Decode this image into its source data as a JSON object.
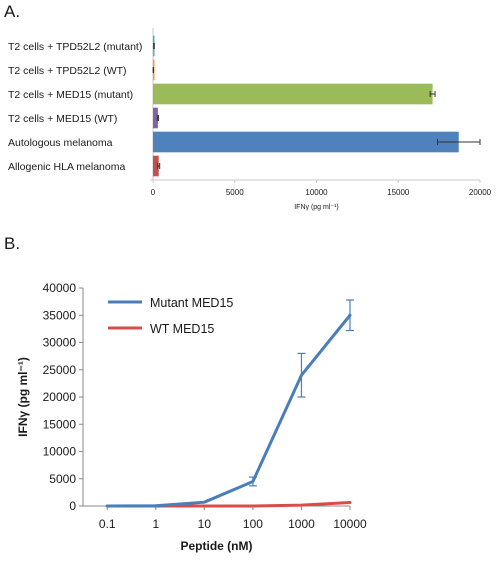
{
  "panel_a": {
    "label": "A.",
    "chart_data": {
      "type": "bar",
      "orientation": "horizontal",
      "categories": [
        "T2 cells + TPD52L2 (mutant)",
        "T2 cells + TPD52L2 (WT)",
        "T2 cells + MED15 (mutant)",
        "T2 cells + MED15 (WT)",
        "Autologous melanoma",
        "Allogenic HLA melanoma"
      ],
      "values": [
        60,
        20,
        17100,
        300,
        18700,
        350
      ],
      "errors": [
        20,
        10,
        150,
        40,
        1300,
        60
      ],
      "colors": [
        "#4bacc6",
        "#f79646",
        "#9bbb59",
        "#8064a2",
        "#4f81bd",
        "#c0504d"
      ],
      "xlabel": "IFNγ (pg ml⁻¹)",
      "xlim": [
        0,
        20000
      ],
      "xticks": [
        "0",
        "5000",
        "10000",
        "15000",
        "20000"
      ],
      "grid": false
    }
  },
  "panel_b": {
    "label": "B.",
    "chart_data": {
      "type": "line",
      "x": [
        "0.1",
        "1",
        "10",
        "100",
        "1000",
        "10000"
      ],
      "series": [
        {
          "name": "Mutant MED15",
          "color": "#4a7ebb",
          "values": [
            0,
            50,
            700,
            4500,
            24000,
            35000
          ],
          "errors": [
            0,
            0,
            0,
            800,
            4000,
            2800
          ]
        },
        {
          "name": "WT MED15",
          "color": "#d94c47",
          "values": [
            0,
            0,
            0,
            0,
            150,
            650
          ],
          "errors": [
            0,
            0,
            0,
            0,
            0,
            0
          ]
        }
      ],
      "xlabel": "Peptide (nM)",
      "ylabel": "IFNγ (pg ml⁻¹)",
      "ylim": [
        0,
        40000
      ],
      "yticks": [
        "0",
        "5000",
        "10000",
        "15000",
        "20000",
        "25000",
        "30000",
        "35000",
        "40000"
      ],
      "legend": "top-left",
      "grid": false
    }
  }
}
